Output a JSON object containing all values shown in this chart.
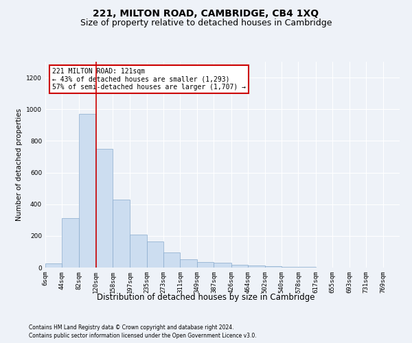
{
  "title": "221, MILTON ROAD, CAMBRIDGE, CB4 1XQ",
  "subtitle": "Size of property relative to detached houses in Cambridge",
  "xlabel": "Distribution of detached houses by size in Cambridge",
  "ylabel": "Number of detached properties",
  "footer1": "Contains HM Land Registry data © Crown copyright and database right 2024.",
  "footer2": "Contains public sector information licensed under the Open Government Licence v3.0.",
  "annotation_title": "221 MILTON ROAD: 121sqm",
  "annotation_line1": "← 43% of detached houses are smaller (1,293)",
  "annotation_line2": "57% of semi-detached houses are larger (1,707) →",
  "bar_color": "#ccddf0",
  "bar_edge_color": "#88aacc",
  "redline_color": "#cc0000",
  "redline_x": 121,
  "categories": [
    "6sqm",
    "44sqm",
    "82sqm",
    "120sqm",
    "158sqm",
    "197sqm",
    "235sqm",
    "273sqm",
    "311sqm",
    "349sqm",
    "387sqm",
    "426sqm",
    "464sqm",
    "502sqm",
    "540sqm",
    "578sqm",
    "617sqm",
    "655sqm",
    "693sqm",
    "731sqm",
    "769sqm"
  ],
  "bin_edges": [
    6,
    44,
    82,
    120,
    158,
    197,
    235,
    273,
    311,
    349,
    387,
    426,
    464,
    502,
    540,
    578,
    617,
    655,
    693,
    731,
    769,
    807
  ],
  "values": [
    25,
    310,
    970,
    750,
    430,
    210,
    165,
    95,
    50,
    35,
    30,
    18,
    12,
    8,
    5,
    4,
    2,
    2,
    1,
    1,
    1
  ],
  "ylim": [
    0,
    1300
  ],
  "yticks": [
    0,
    200,
    400,
    600,
    800,
    1000,
    1200
  ],
  "background_color": "#eef2f8",
  "grid_color": "#ffffff",
  "title_fontsize": 10,
  "subtitle_fontsize": 9,
  "xlabel_fontsize": 8.5,
  "ylabel_fontsize": 7.5,
  "tick_fontsize": 6.5,
  "footer_fontsize": 5.5,
  "annotation_fontsize": 7
}
